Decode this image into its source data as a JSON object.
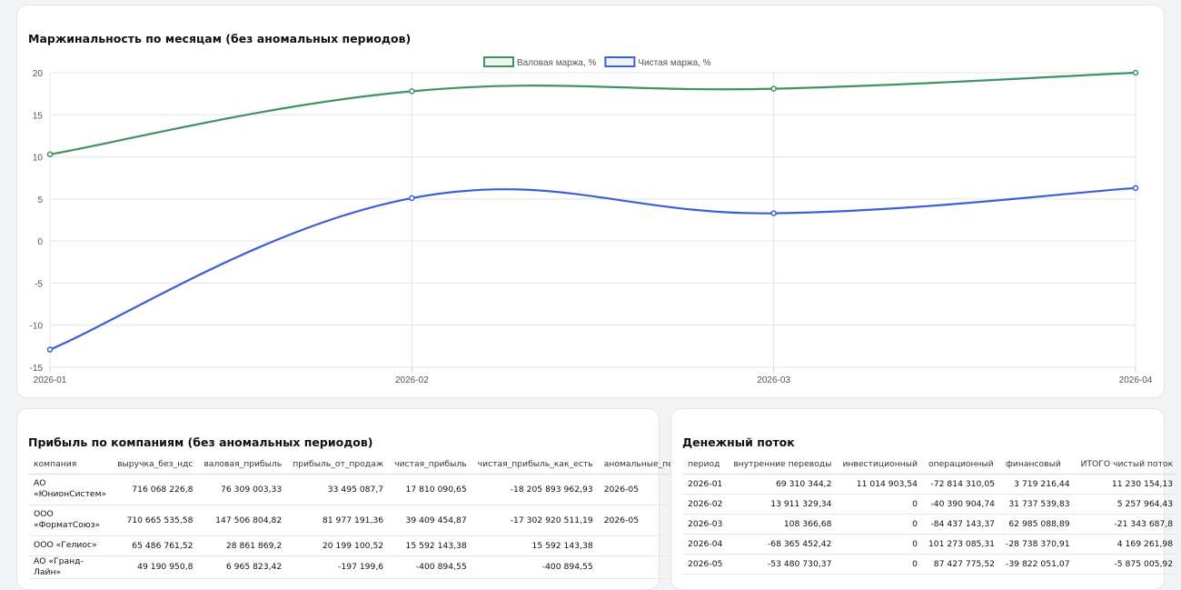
{
  "chart_card": {
    "title": "Маржинальность по месяцам (без аномальных периодов)"
  },
  "chart_data": {
    "type": "line",
    "categories": [
      "2026-01",
      "2026-02",
      "2026-03",
      "2026-04"
    ],
    "ylim": [
      -15,
      20
    ],
    "yticks": [
      20,
      15,
      10,
      5,
      0,
      -5,
      -10,
      -15
    ],
    "grid": true,
    "legend_position": "top-center",
    "series": [
      {
        "name": "Валовая маржа, %",
        "color": "#3e9363",
        "values": [
          10.3,
          17.8,
          18.1,
          20.0
        ]
      },
      {
        "name": "Чистая маржа, %",
        "color": "#3b5fd6",
        "values": [
          -12.9,
          5.1,
          3.3,
          6.3
        ]
      }
    ]
  },
  "profit_card": {
    "title": "Прибыль по компаниям (без аномальных периодов)",
    "columns": [
      "компания",
      "выручка_без_ндс",
      "валовая_прибыль",
      "прибыль_от_продаж",
      "чистая_прибыль",
      "чистая_прибыль_как_есть",
      "аномальные_периоды"
    ],
    "rows": [
      [
        "АО «ЮнионСистем»",
        "716 068 226,8",
        "76 309 003,33",
        "33 495 087,7",
        "17 810 090,65",
        "-18 205 893 962,93",
        "2026-05"
      ],
      [
        "ООО «ФорматСоюз»",
        "710 665 535,58",
        "147 506 804,82",
        "81 977 191,36",
        "39 409 454,87",
        "-17 302 920 511,19",
        "2026-05"
      ],
      [
        "ООО «Гелиос»",
        "65 486 761,52",
        "28 861 869,2",
        "20 199 100,52",
        "15 592 143,38",
        "15 592 143,38",
        ""
      ],
      [
        "АО «Гранд-Лайн»",
        "49 190 950,8",
        "6 965 823,42",
        "-197 199,6",
        "-400 894,55",
        "-400 894,55",
        ""
      ]
    ]
  },
  "cash_card": {
    "title": "Денежный поток",
    "columns": [
      "период",
      "внутренние переводы",
      "инвестиционный",
      "операционный",
      "финансовый",
      "ИТОГО чистый поток"
    ],
    "rows": [
      [
        "2026-01",
        "69 310 344,2",
        "11 014 903,54",
        "-72 814 310,05",
        "3 719 216,44",
        "11 230 154,13"
      ],
      [
        "2026-02",
        "13 911 329,34",
        "0",
        "-40 390 904,74",
        "31 737 539,83",
        "5 257 964,43"
      ],
      [
        "2026-03",
        "108 366,68",
        "0",
        "-84 437 143,37",
        "62 985 088,89",
        "-21 343 687,8"
      ],
      [
        "2026-04",
        "-68 365 452,42",
        "0",
        "101 273 085,31",
        "-28 738 370,91",
        "4 169 261,98"
      ],
      [
        "2026-05",
        "-53 480 730,37",
        "0",
        "87 427 775,52",
        "-39 822 051,07",
        "-5 875 005,92"
      ]
    ]
  }
}
